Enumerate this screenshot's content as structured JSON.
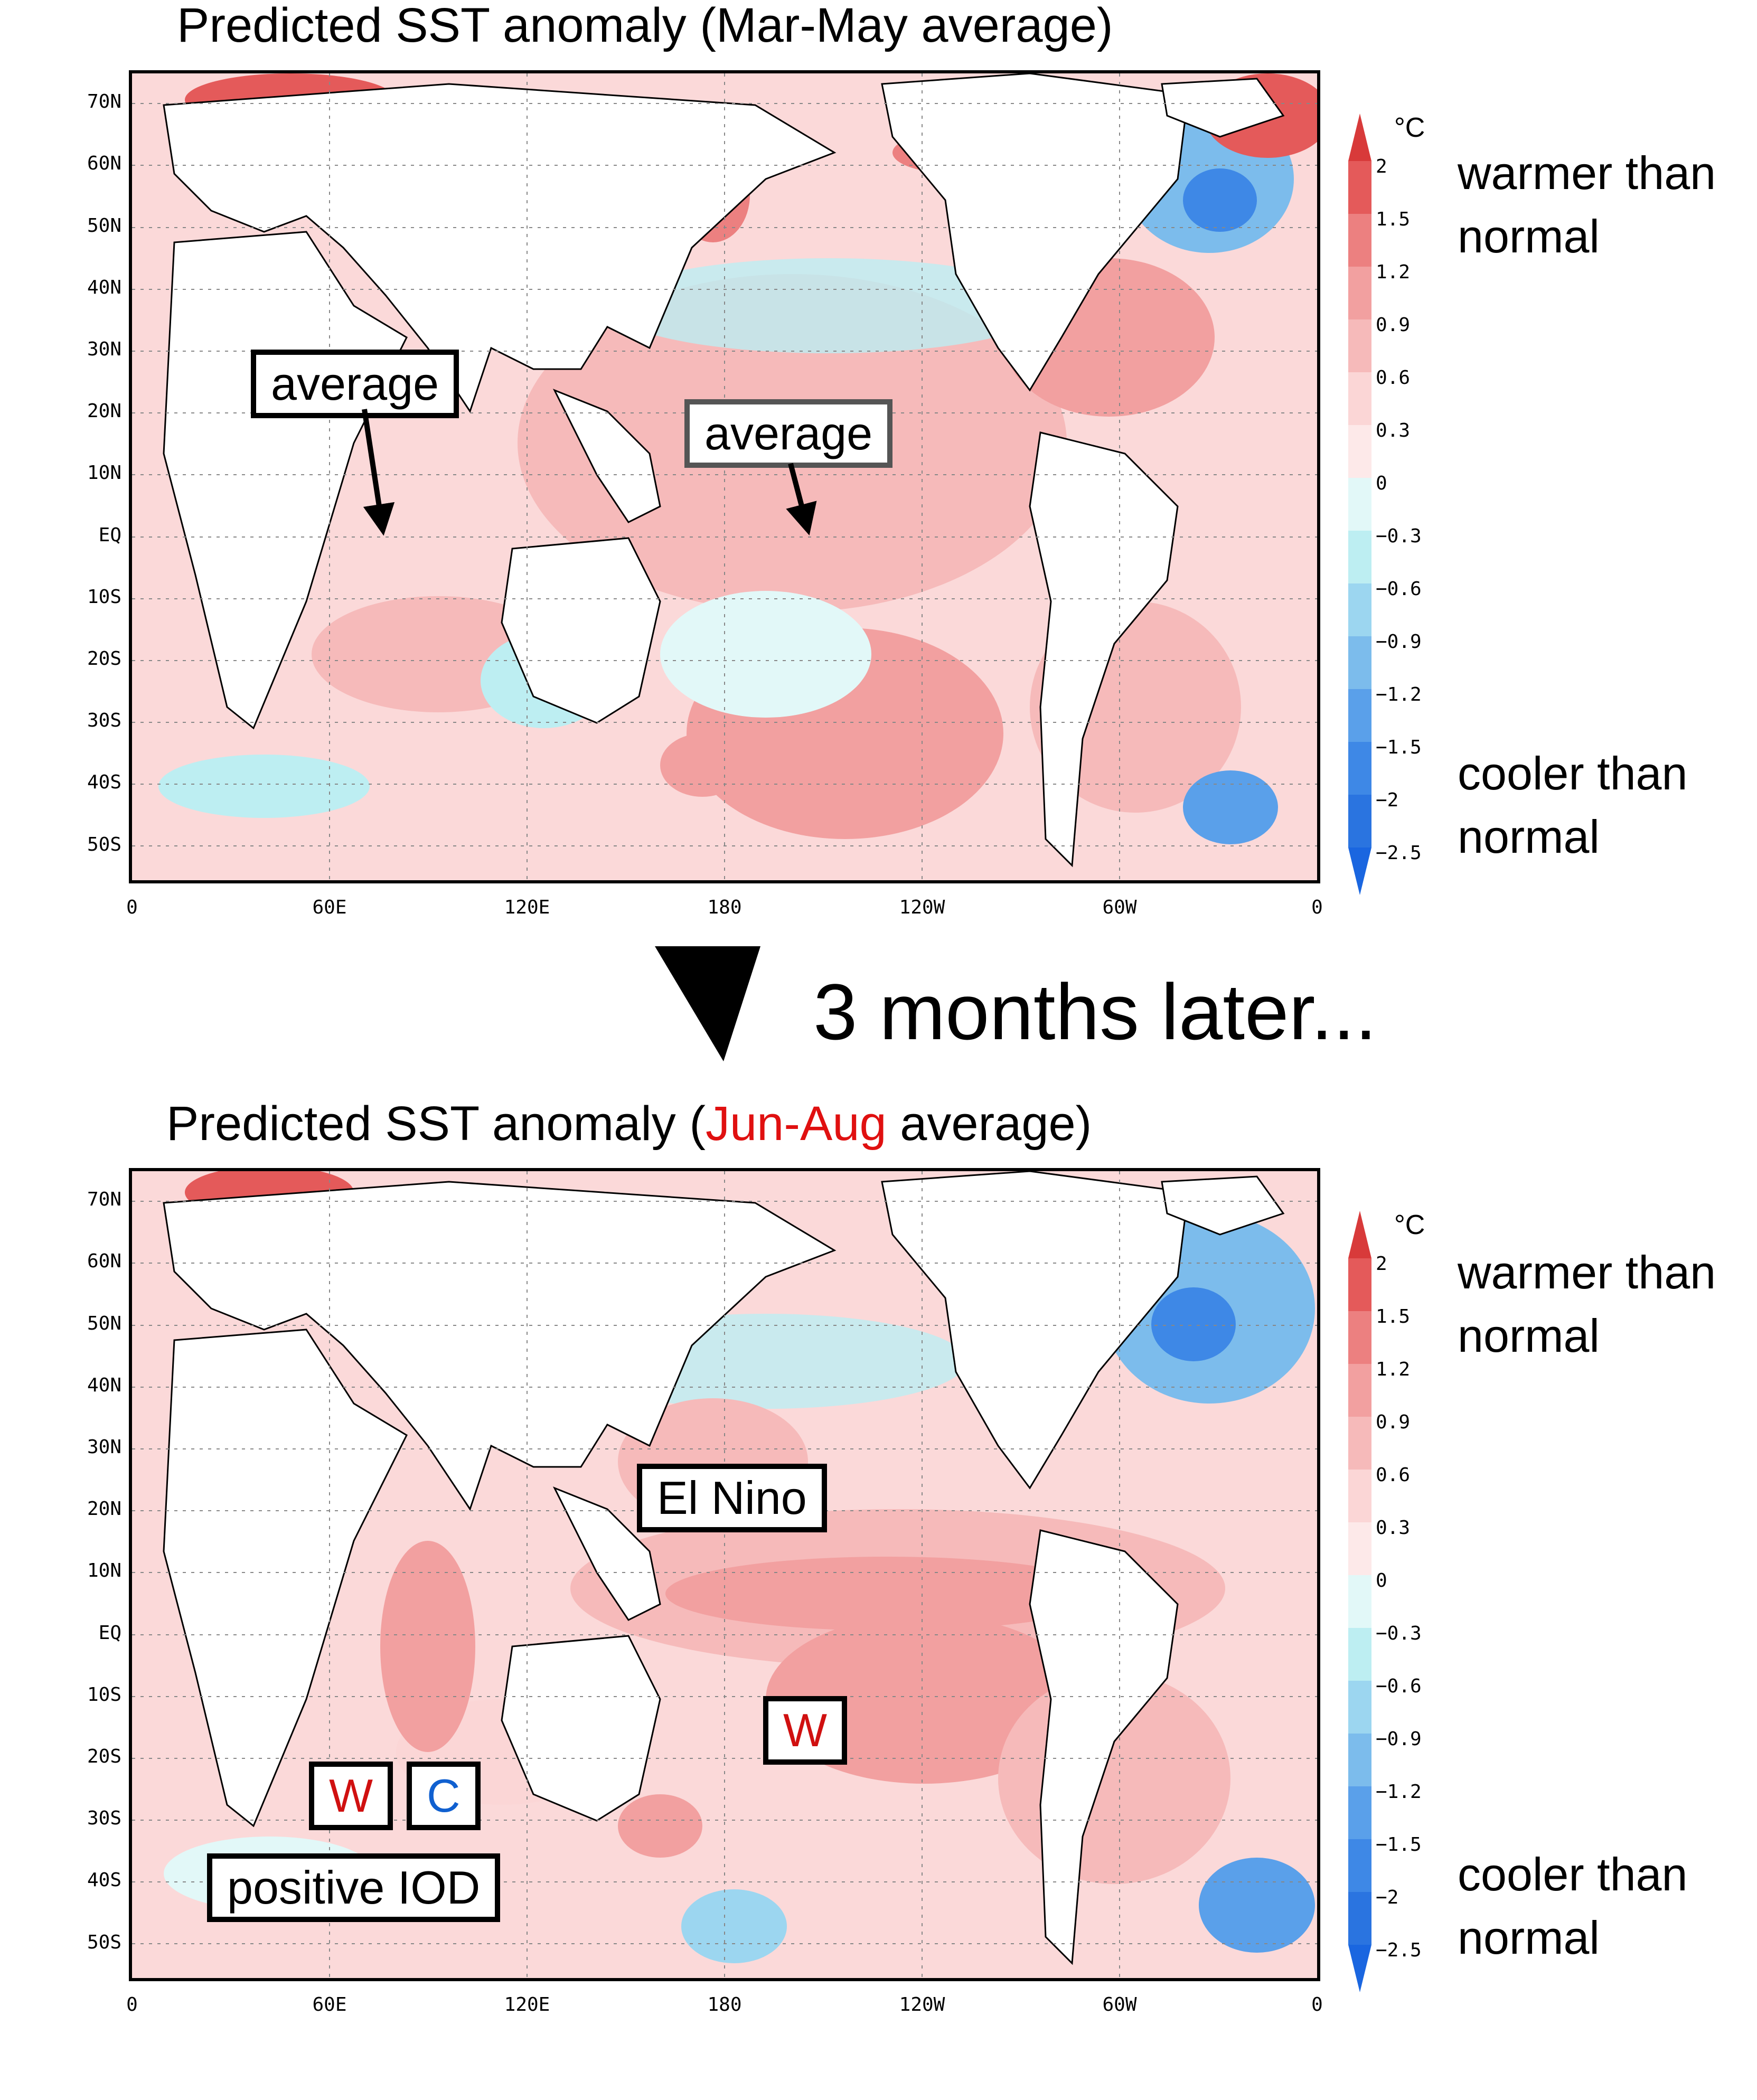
{
  "map1": {
    "title": "Predicted SST anomaly (Mar-May average)",
    "annotations": [
      {
        "id": "indian",
        "text": "average"
      },
      {
        "id": "pacific",
        "text": "average"
      }
    ]
  },
  "separator": {
    "text": "3 months later..."
  },
  "map2": {
    "title_prefix": "Predicted SST anomaly (",
    "title_highlight": "Jun-Aug",
    "title_suffix": " average)",
    "annotations": [
      {
        "id": "elnino",
        "text": "El Nino"
      },
      {
        "id": "w_pacific",
        "text": "W"
      },
      {
        "id": "w_indian",
        "text": "W"
      },
      {
        "id": "c_indian",
        "text": "C"
      },
      {
        "id": "iod",
        "text": "positive IOD"
      }
    ]
  },
  "lat_labels": [
    "70N",
    "60N",
    "50N",
    "40N",
    "30N",
    "20N",
    "10N",
    "EQ",
    "10S",
    "20S",
    "30S",
    "40S",
    "50S"
  ],
  "lon_labels": [
    "0",
    "60E",
    "120E",
    "180",
    "120W",
    "60W",
    "0"
  ],
  "colorbar": {
    "unit": "°C",
    "ticks": [
      "2",
      "1.5",
      "1.2",
      "0.9",
      "0.6",
      "0.3",
      "0",
      "−0.3",
      "−0.6",
      "−0.9",
      "−1.2",
      "−1.5",
      "−2",
      "−2.5"
    ],
    "colors": [
      "#d83a3a",
      "#e45a5a",
      "#ec8080",
      "#f2a0a0",
      "#f6baba",
      "#fbd6d6",
      "#fde9e9",
      "#e2f8f8",
      "#bdeef2",
      "#9cd6f0",
      "#7cbcec",
      "#5aa0ea",
      "#3e88e6",
      "#2a74e0",
      "#1a66e0"
    ],
    "warm_label_1": "warmer than",
    "warm_label_2": "normal",
    "cool_label_1": "cooler than",
    "cool_label_2": "normal"
  },
  "colors": {
    "warm_text": "#d01010",
    "cool_text": "#1060d0",
    "ocean_base": "#fbd9d9"
  }
}
